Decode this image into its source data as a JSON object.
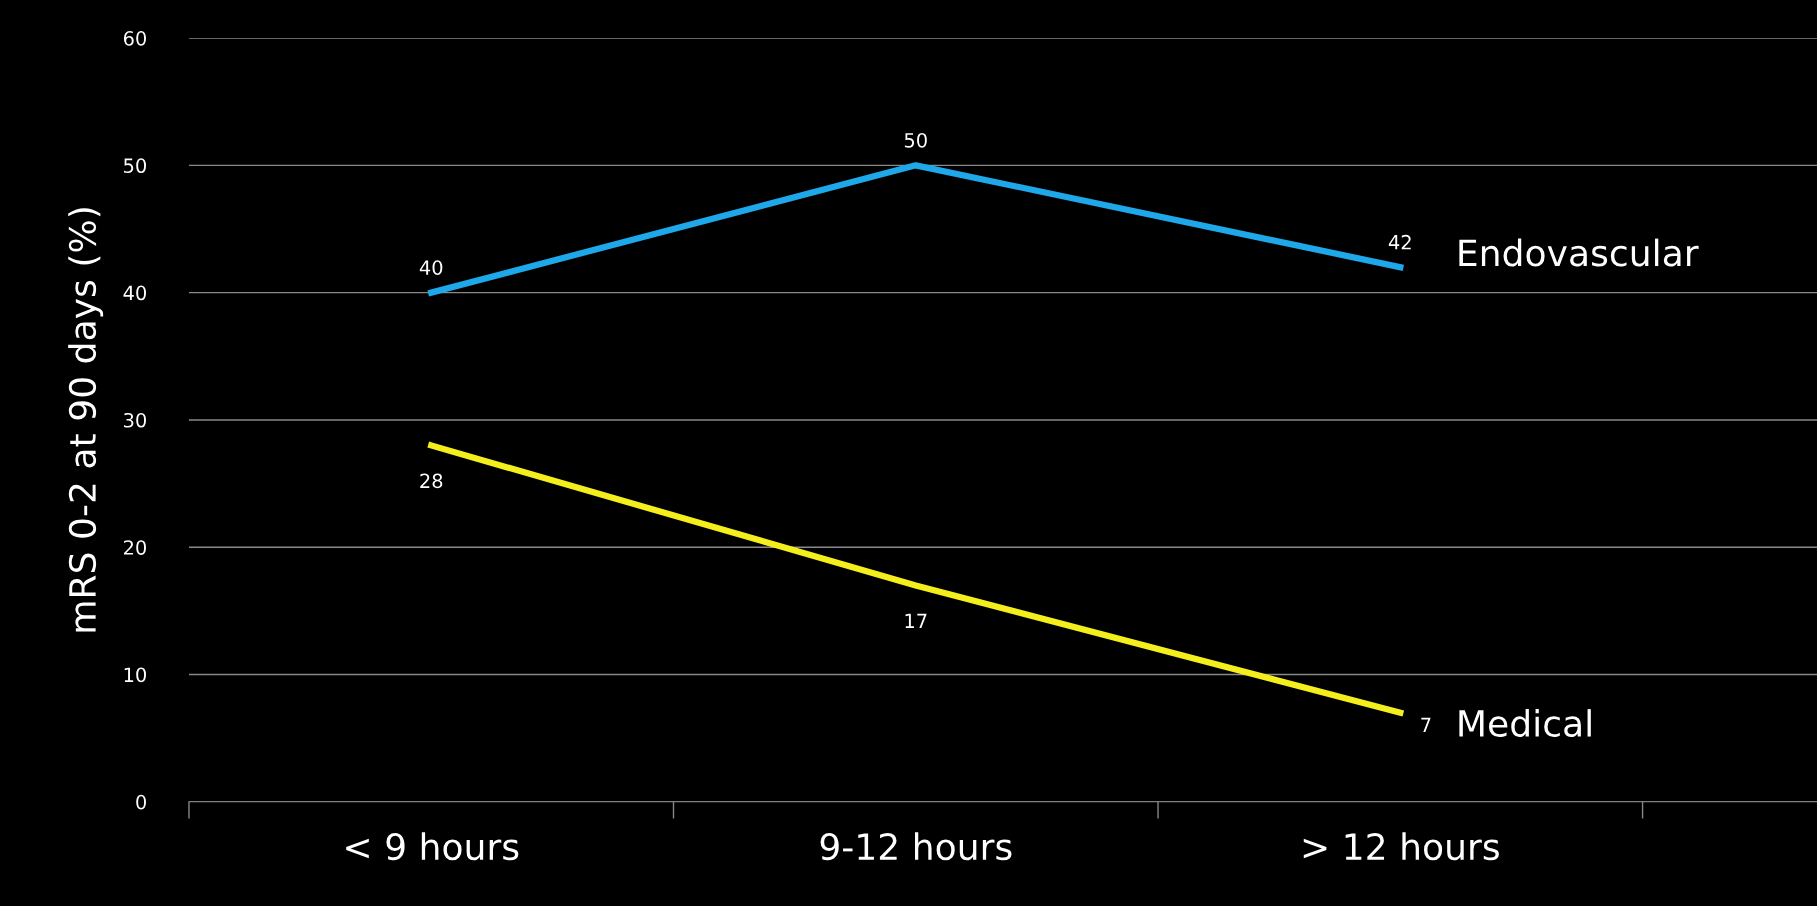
{
  "chart_data": {
    "type": "line",
    "ylabel": "mRS 0-2 at 90 days (%)",
    "categories": [
      "< 9 hours",
      "9-12 hours",
      "> 12 hours"
    ],
    "series": [
      {
        "name": "Endovascular",
        "color": "#1ea8ea",
        "values": [
          40,
          50,
          42
        ]
      },
      {
        "name": "Medical",
        "color": "#f4ef1c",
        "values": [
          28,
          17,
          7
        ]
      }
    ],
    "ylim": [
      0,
      60
    ],
    "yticks": [
      0,
      10,
      20,
      30,
      40,
      50,
      60
    ],
    "grid": "y",
    "data_labels": true,
    "legend": false,
    "marker": "none",
    "line_style": "solid"
  }
}
